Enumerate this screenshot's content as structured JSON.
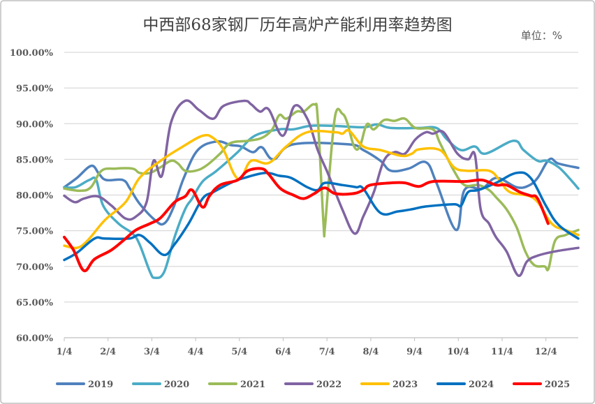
{
  "chart_data": {
    "type": "line",
    "title": "中西部68家钢厂历年高炉产能利用率趋势图",
    "unit_label": "单位：%",
    "xlabel": "",
    "ylabel": "",
    "ylim": [
      60,
      100
    ],
    "y_ticks": [
      "60.00%",
      "65.00%",
      "70.00%",
      "75.00%",
      "80.00%",
      "85.00%",
      "90.00%",
      "95.00%",
      "100.00%"
    ],
    "x_ticks": [
      "1/4",
      "2/4",
      "3/4",
      "4/4",
      "5/4",
      "6/4",
      "7/4",
      "8/4",
      "9/4",
      "10/4",
      "11/4",
      "12/4"
    ],
    "x_unit": "months after 1/4",
    "grid": true,
    "legend_position": "bottom",
    "series": [
      {
        "name": "2019",
        "color": "#4f81bd",
        "points": [
          [
            0,
            81.1
          ],
          [
            0.29,
            82.4
          ],
          [
            0.62,
            84.1
          ],
          [
            0.8,
            82.9
          ],
          [
            0.96,
            82.1
          ],
          [
            1.34,
            82.1
          ],
          [
            1.5,
            80.9
          ],
          [
            1.72,
            78.8
          ],
          [
            2.07,
            76.5
          ],
          [
            2.28,
            76.0
          ],
          [
            2.49,
            78.2
          ],
          [
            2.73,
            82.4
          ],
          [
            3.05,
            86.3
          ],
          [
            3.48,
            87.5
          ],
          [
            3.8,
            87.0
          ],
          [
            4.04,
            86.8
          ],
          [
            4.31,
            86.0
          ],
          [
            4.51,
            86.7
          ],
          [
            4.78,
            85.0
          ],
          [
            5.23,
            87.1
          ],
          [
            6.5,
            87.1
          ],
          [
            6.83,
            86.3
          ],
          [
            7.22,
            84.8
          ],
          [
            7.46,
            83.4
          ],
          [
            7.86,
            83.7
          ],
          [
            8.26,
            84.6
          ],
          [
            8.5,
            81.7
          ],
          [
            8.95,
            75.1
          ],
          [
            9.14,
            80.7
          ],
          [
            9.54,
            80.9
          ],
          [
            9.87,
            82.4
          ],
          [
            10.33,
            81.1
          ],
          [
            10.6,
            81.3
          ],
          [
            10.81,
            82.4
          ],
          [
            11.08,
            85.0
          ],
          [
            11.29,
            84.4
          ],
          [
            11.74,
            83.8
          ]
        ]
      },
      {
        "name": "2020",
        "color": "#4bacc6",
        "points": [
          [
            0,
            81.1
          ],
          [
            0.26,
            81.1
          ],
          [
            0.57,
            82.1
          ],
          [
            0.73,
            82.1
          ],
          [
            0.89,
            78.5
          ],
          [
            1.24,
            76.0
          ],
          [
            1.56,
            74.6
          ],
          [
            1.72,
            73.1
          ],
          [
            1.96,
            69.2
          ],
          [
            2.07,
            68.4
          ],
          [
            2.28,
            69.2
          ],
          [
            2.52,
            74.1
          ],
          [
            2.76,
            78.0
          ],
          [
            2.92,
            79.5
          ],
          [
            3.16,
            81.9
          ],
          [
            3.48,
            83.4
          ],
          [
            3.96,
            86.0
          ],
          [
            4.35,
            88.3
          ],
          [
            4.91,
            89.2
          ],
          [
            5.23,
            89.2
          ],
          [
            5.63,
            89.7
          ],
          [
            6.11,
            89.7
          ],
          [
            6.83,
            89.5
          ],
          [
            7.14,
            89.9
          ],
          [
            7.46,
            89.4
          ],
          [
            8.1,
            89.4
          ],
          [
            8.5,
            89.4
          ],
          [
            8.74,
            87.8
          ],
          [
            9.06,
            86.3
          ],
          [
            9.38,
            86.8
          ],
          [
            9.62,
            85.8
          ],
          [
            10.26,
            87.6
          ],
          [
            10.49,
            86.3
          ],
          [
            10.81,
            84.8
          ],
          [
            11.02,
            84.8
          ],
          [
            11.29,
            83.9
          ],
          [
            11.53,
            82.4
          ],
          [
            11.74,
            80.9
          ]
        ]
      },
      {
        "name": "2021",
        "color": "#9bbb59",
        "points": [
          [
            0,
            80.9
          ],
          [
            0.37,
            80.6
          ],
          [
            0.61,
            81.1
          ],
          [
            0.85,
            83.4
          ],
          [
            1.16,
            83.7
          ],
          [
            1.56,
            83.7
          ],
          [
            1.72,
            83.1
          ],
          [
            1.96,
            83.1
          ],
          [
            2.2,
            83.9
          ],
          [
            2.44,
            84.8
          ],
          [
            2.6,
            84.4
          ],
          [
            2.76,
            83.4
          ],
          [
            3.0,
            83.4
          ],
          [
            3.24,
            84.1
          ],
          [
            3.56,
            85.8
          ],
          [
            3.8,
            87.3
          ],
          [
            4.19,
            87.6
          ],
          [
            4.51,
            88.0
          ],
          [
            4.75,
            89.2
          ],
          [
            4.91,
            91.2
          ],
          [
            5.07,
            90.7
          ],
          [
            5.31,
            91.7
          ],
          [
            5.47,
            91.7
          ],
          [
            5.71,
            92.7
          ],
          [
            5.79,
            90.7
          ],
          [
            5.92,
            76.0
          ],
          [
            5.95,
            75.3
          ],
          [
            6.04,
            81.9
          ],
          [
            6.19,
            91.2
          ],
          [
            6.35,
            91.4
          ],
          [
            6.46,
            90.2
          ],
          [
            6.62,
            86.8
          ],
          [
            6.75,
            86.8
          ],
          [
            6.91,
            89.9
          ],
          [
            7.07,
            89.2
          ],
          [
            7.3,
            90.5
          ],
          [
            7.54,
            90.4
          ],
          [
            7.78,
            90.7
          ],
          [
            8.02,
            89.4
          ],
          [
            8.42,
            89.2
          ],
          [
            8.58,
            87.3
          ],
          [
            8.9,
            83.4
          ],
          [
            9.14,
            81.4
          ],
          [
            9.46,
            81.4
          ],
          [
            9.7,
            80.7
          ],
          [
            9.86,
            79.7
          ],
          [
            10.1,
            78.0
          ],
          [
            10.33,
            75.5
          ],
          [
            10.53,
            72.1
          ],
          [
            10.73,
            70.2
          ],
          [
            10.97,
            70.0
          ],
          [
            11.06,
            69.7
          ],
          [
            11.21,
            73.6
          ],
          [
            11.45,
            74.4
          ],
          [
            11.74,
            75.1
          ]
        ]
      },
      {
        "name": "2022",
        "color": "#8064a2",
        "points": [
          [
            0,
            79.9
          ],
          [
            0.24,
            79.0
          ],
          [
            0.45,
            79.5
          ],
          [
            0.77,
            79.8
          ],
          [
            1.08,
            78.5
          ],
          [
            1.4,
            76.7
          ],
          [
            1.64,
            77.0
          ],
          [
            1.88,
            79.0
          ],
          [
            2.04,
            84.8
          ],
          [
            2.23,
            82.7
          ],
          [
            2.44,
            90.2
          ],
          [
            2.76,
            93.2
          ],
          [
            3.08,
            91.9
          ],
          [
            3.4,
            90.7
          ],
          [
            3.64,
            92.5
          ],
          [
            4.11,
            93.2
          ],
          [
            4.27,
            92.7
          ],
          [
            4.47,
            91.7
          ],
          [
            4.67,
            92.0
          ],
          [
            4.99,
            88.3
          ],
          [
            5.26,
            92.5
          ],
          [
            5.55,
            90.7
          ],
          [
            5.79,
            86.3
          ],
          [
            6.03,
            82.9
          ],
          [
            6.35,
            78.0
          ],
          [
            6.63,
            74.6
          ],
          [
            6.83,
            77.0
          ],
          [
            7.07,
            80.4
          ],
          [
            7.3,
            84.8
          ],
          [
            7.54,
            86.0
          ],
          [
            7.78,
            85.8
          ],
          [
            8.02,
            87.8
          ],
          [
            8.26,
            88.8
          ],
          [
            8.42,
            88.6
          ],
          [
            8.66,
            88.8
          ],
          [
            8.98,
            85.8
          ],
          [
            9.22,
            85.0
          ],
          [
            9.38,
            85.6
          ],
          [
            9.51,
            78.0
          ],
          [
            9.7,
            76.0
          ],
          [
            9.86,
            74.1
          ],
          [
            10.1,
            72.1
          ],
          [
            10.37,
            68.7
          ],
          [
            10.57,
            70.7
          ],
          [
            10.81,
            71.5
          ],
          [
            11.21,
            72.1
          ],
          [
            11.74,
            72.6
          ]
        ]
      },
      {
        "name": "2023",
        "color": "#ffc000",
        "points": [
          [
            0,
            72.9
          ],
          [
            0.29,
            72.6
          ],
          [
            0.53,
            73.6
          ],
          [
            0.93,
            76.5
          ],
          [
            1.4,
            79.0
          ],
          [
            1.72,
            82.4
          ],
          [
            2.2,
            84.8
          ],
          [
            2.71,
            86.8
          ],
          [
            3.16,
            88.3
          ],
          [
            3.4,
            88.0
          ],
          [
            3.64,
            86.3
          ],
          [
            3.88,
            82.9
          ],
          [
            4.04,
            82.4
          ],
          [
            4.27,
            84.8
          ],
          [
            4.67,
            84.5
          ],
          [
            5.07,
            86.8
          ],
          [
            5.55,
            88.8
          ],
          [
            6.19,
            88.8
          ],
          [
            6.35,
            88.6
          ],
          [
            6.51,
            89.0
          ],
          [
            6.83,
            86.8
          ],
          [
            7.22,
            86.3
          ],
          [
            7.7,
            85.5
          ],
          [
            7.94,
            85.8
          ],
          [
            8.1,
            86.4
          ],
          [
            8.58,
            86.3
          ],
          [
            8.9,
            83.9
          ],
          [
            9.19,
            83.4
          ],
          [
            9.7,
            83.4
          ],
          [
            9.94,
            82.1
          ],
          [
            10.18,
            80.4
          ],
          [
            10.73,
            79.5
          ],
          [
            11.13,
            76.0
          ],
          [
            11.45,
            75.1
          ],
          [
            11.74,
            74.4
          ]
        ]
      },
      {
        "name": "2024",
        "color": "#0070c0",
        "points": [
          [
            0,
            70.9
          ],
          [
            0.29,
            71.9
          ],
          [
            0.69,
            73.9
          ],
          [
            0.93,
            73.9
          ],
          [
            1.48,
            73.9
          ],
          [
            1.72,
            74.4
          ],
          [
            1.96,
            73.3
          ],
          [
            2.28,
            71.6
          ],
          [
            2.52,
            73.1
          ],
          [
            2.84,
            76.0
          ],
          [
            3.16,
            79.5
          ],
          [
            3.4,
            80.4
          ],
          [
            3.8,
            81.7
          ],
          [
            4.11,
            82.4
          ],
          [
            4.59,
            83.1
          ],
          [
            4.91,
            82.7
          ],
          [
            5.18,
            82.4
          ],
          [
            5.55,
            81.1
          ],
          [
            5.79,
            80.7
          ],
          [
            5.95,
            81.7
          ],
          [
            6.35,
            81.4
          ],
          [
            6.67,
            81.1
          ],
          [
            6.83,
            80.9
          ],
          [
            7.22,
            77.5
          ],
          [
            7.62,
            77.7
          ],
          [
            7.94,
            78.0
          ],
          [
            8.26,
            78.4
          ],
          [
            8.9,
            78.7
          ],
          [
            9.06,
            78.5
          ],
          [
            9.22,
            80.4
          ],
          [
            9.46,
            80.7
          ],
          [
            9.86,
            81.7
          ],
          [
            10.33,
            83.1
          ],
          [
            10.65,
            82.4
          ],
          [
            11.0,
            78.5
          ],
          [
            11.29,
            75.8
          ],
          [
            11.74,
            73.9
          ]
        ]
      },
      {
        "name": "2025",
        "color": "#ff0000",
        "points": [
          [
            0,
            74.1
          ],
          [
            0.21,
            72.3
          ],
          [
            0.45,
            69.4
          ],
          [
            0.69,
            71.0
          ],
          [
            1.08,
            72.3
          ],
          [
            1.4,
            73.9
          ],
          [
            1.64,
            75.1
          ],
          [
            1.96,
            76.0
          ],
          [
            2.2,
            76.8
          ],
          [
            2.52,
            79.0
          ],
          [
            2.76,
            79.8
          ],
          [
            2.92,
            80.7
          ],
          [
            3.16,
            78.3
          ],
          [
            3.32,
            79.9
          ],
          [
            3.56,
            81.4
          ],
          [
            3.96,
            82.1
          ],
          [
            4.19,
            83.4
          ],
          [
            4.51,
            83.7
          ],
          [
            4.67,
            82.9
          ],
          [
            4.94,
            80.9
          ],
          [
            5.23,
            80.0
          ],
          [
            5.47,
            79.5
          ],
          [
            5.71,
            80.2
          ],
          [
            5.95,
            81.0
          ],
          [
            6.19,
            80.2
          ],
          [
            6.59,
            80.2
          ],
          [
            6.83,
            80.7
          ],
          [
            6.99,
            81.4
          ],
          [
            7.46,
            81.7
          ],
          [
            7.78,
            81.7
          ],
          [
            8.1,
            81.2
          ],
          [
            8.42,
            81.9
          ],
          [
            9.14,
            81.9
          ],
          [
            9.54,
            82.1
          ],
          [
            9.86,
            81.4
          ],
          [
            10.1,
            81.4
          ],
          [
            10.41,
            80.4
          ],
          [
            10.65,
            79.9
          ],
          [
            10.81,
            79.5
          ],
          [
            11.05,
            76.0
          ]
        ]
      }
    ]
  }
}
